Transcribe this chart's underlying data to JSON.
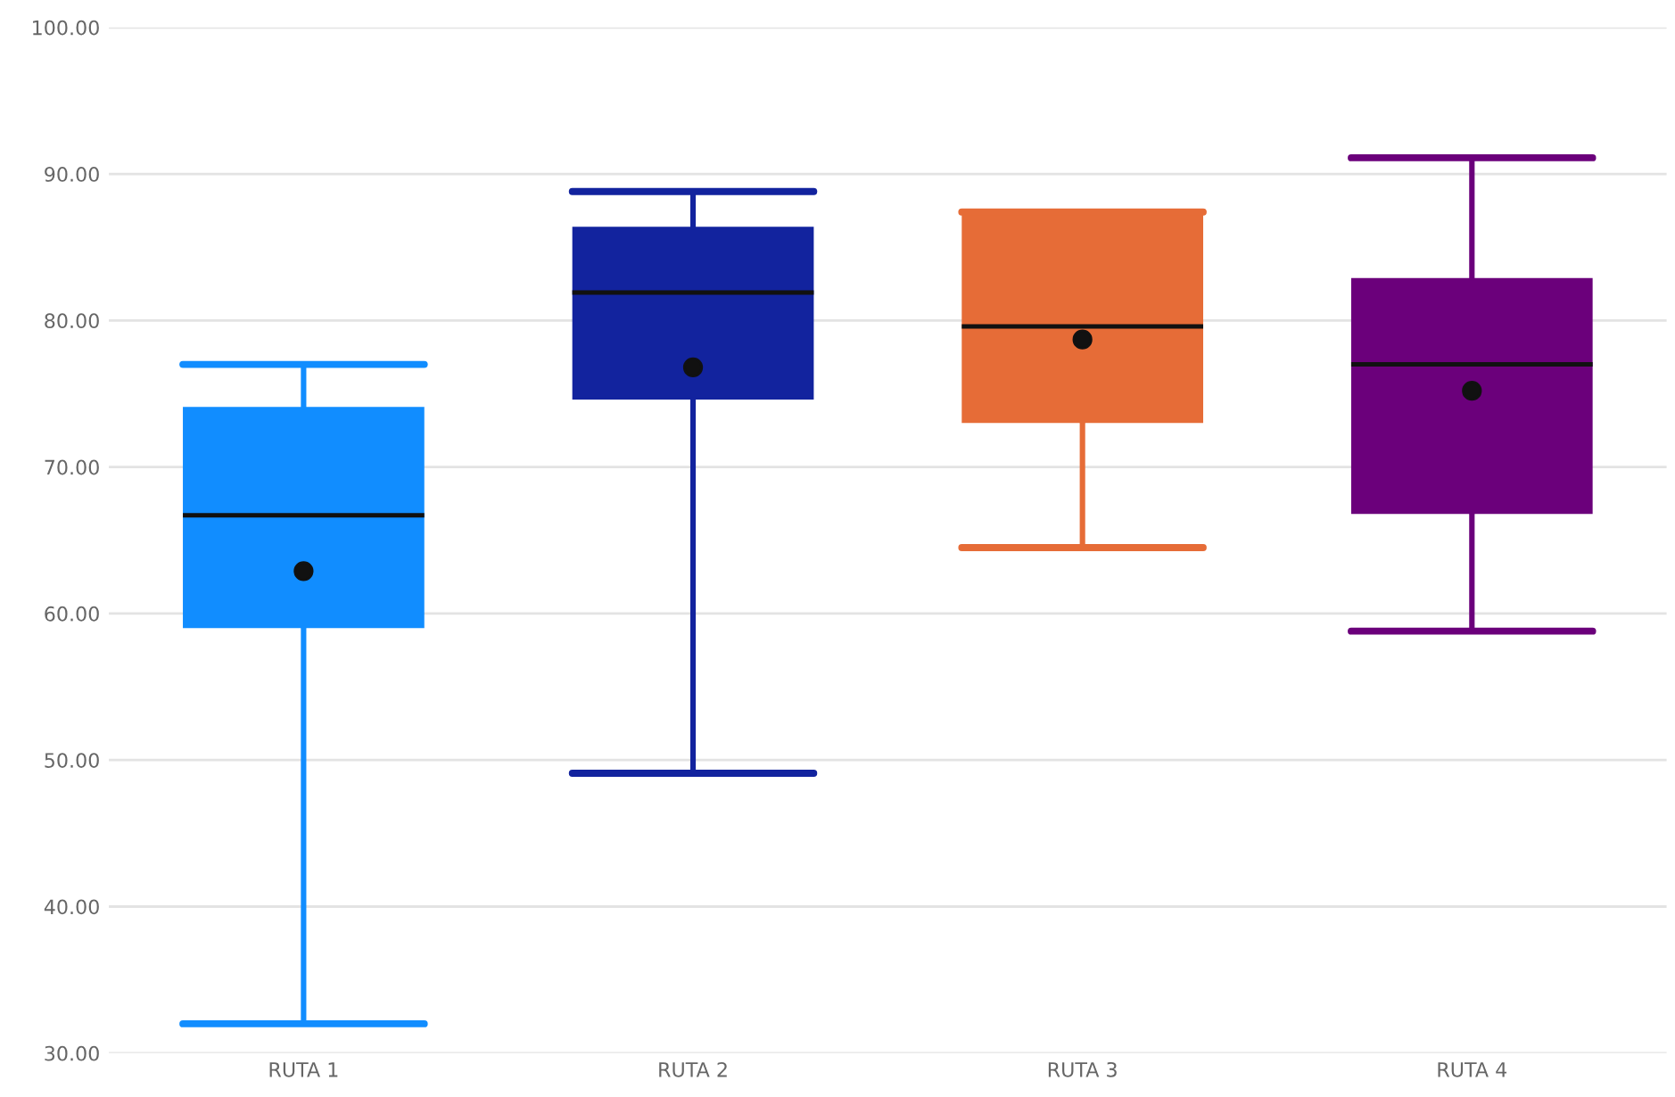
{
  "chart_data": {
    "type": "box",
    "categories": [
      "RUTA 1",
      "RUTA 2",
      "RUTA 3",
      "RUTA 4"
    ],
    "colors": [
      "#118dff",
      "#12239e",
      "#e66c37",
      "#6b007b"
    ],
    "boxes": [
      {
        "low": 32.0,
        "q1": 59.0,
        "median": 66.7,
        "q3": 74.1,
        "high": 77.0,
        "mean": 62.9
      },
      {
        "low": 49.1,
        "q1": 74.6,
        "median": 81.9,
        "q3": 86.4,
        "high": 88.8,
        "mean": 76.8
      },
      {
        "low": 64.5,
        "q1": 73.0,
        "median": 79.6,
        "q3": 87.4,
        "high": 87.4,
        "mean": 78.7
      },
      {
        "low": 58.8,
        "q1": 66.8,
        "median": 77.0,
        "q3": 82.9,
        "high": 91.1,
        "mean": 75.2
      }
    ],
    "ylim": [
      30,
      100
    ],
    "yticks": [
      {
        "value": 30,
        "label": "30.00"
      },
      {
        "value": 40,
        "label": "40.00"
      },
      {
        "value": 50,
        "label": "50.00"
      },
      {
        "value": 60,
        "label": "60.00"
      },
      {
        "value": 70,
        "label": "70.00"
      },
      {
        "value": 80,
        "label": "80.00"
      },
      {
        "value": 90,
        "label": "90.00"
      },
      {
        "value": 100,
        "label": "100.00"
      }
    ],
    "grid": "y"
  }
}
